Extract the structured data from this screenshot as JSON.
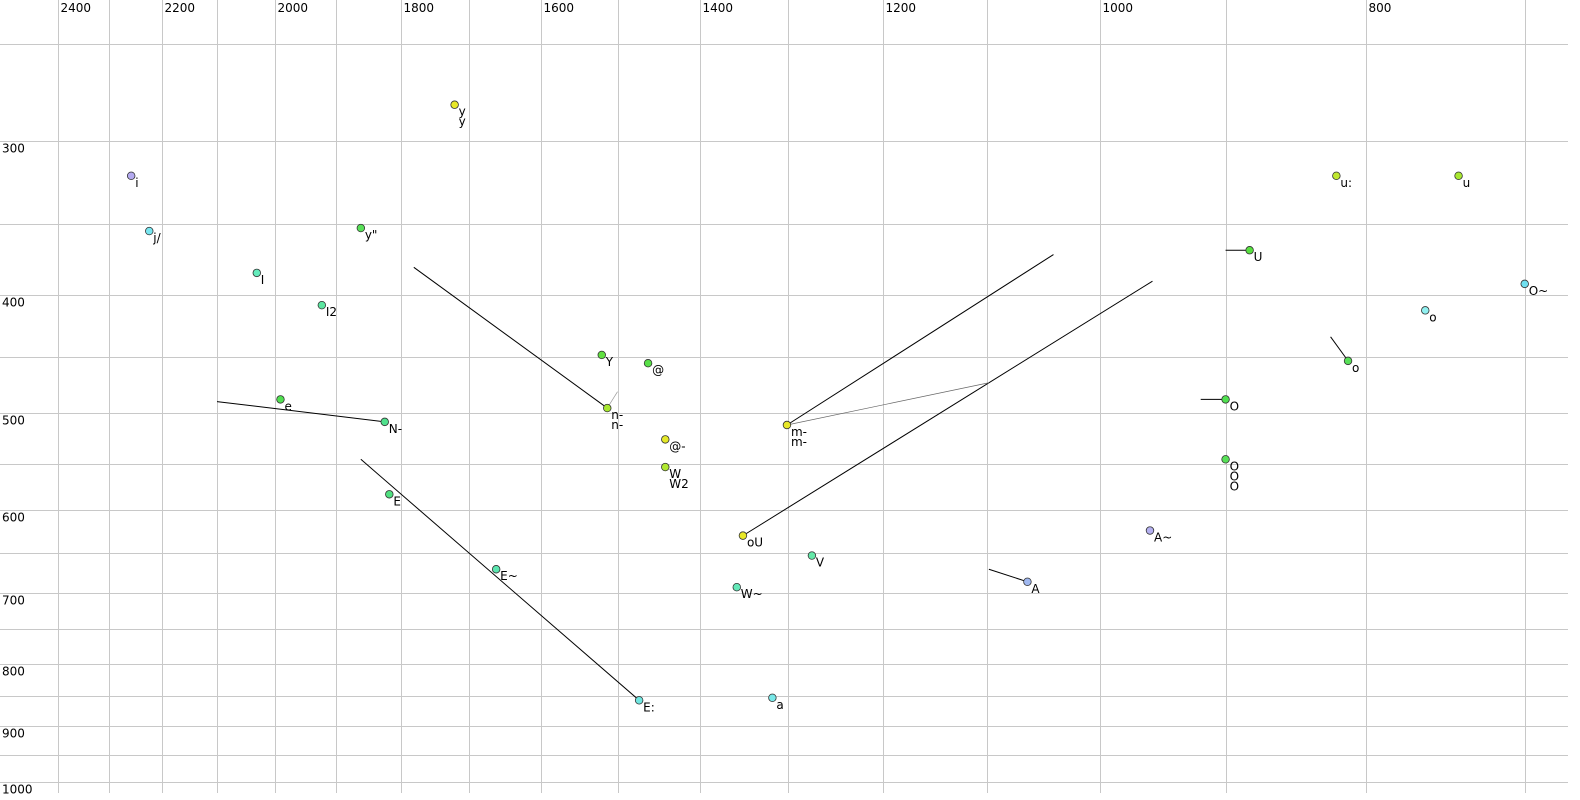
{
  "chart_data": {
    "type": "scatter",
    "xscale": "log",
    "yscale": "log",
    "xlim": [
      2520,
      675
    ],
    "ylim": [
      230,
      1020
    ],
    "xticks": [
      2400,
      2200,
      2000,
      1800,
      1600,
      1400,
      1200,
      1000,
      800
    ],
    "xminor": [
      2300,
      2100,
      1900,
      1700,
      1500,
      1300,
      1100,
      900,
      700
    ],
    "yticks": [
      300,
      400,
      500,
      600,
      700,
      800,
      900,
      1000
    ],
    "yminor": [
      250,
      350,
      450,
      550,
      650,
      750,
      850,
      950
    ],
    "grid": true,
    "points": [
      {
        "x": 2257,
        "y": 320,
        "color": "#b4aaf0",
        "labels": [
          {
            "text": "i",
            "color": "#000"
          }
        ]
      },
      {
        "x": 2223,
        "y": 355,
        "color": "#78e6f0",
        "labels": [
          {
            "text": "j/",
            "color": "#000"
          }
        ]
      },
      {
        "x": 2031,
        "y": 384,
        "color": "#64ecbc",
        "labels": [
          {
            "text": "I",
            "color": "#000"
          }
        ]
      },
      {
        "x": 1923,
        "y": 408,
        "color": "#5ce6a0",
        "labels": [
          {
            "text": "I2",
            "color": "#000"
          }
        ]
      },
      {
        "x": 1861,
        "y": 353,
        "color": "#58e058",
        "labels": [
          {
            "text": "y\"",
            "color": "#000"
          }
        ]
      },
      {
        "x": 1720,
        "y": 280,
        "color": "#e8e828",
        "labels": [
          {
            "text": "y",
            "color": "#999"
          },
          {
            "text": "y",
            "color": "#000"
          }
        ]
      },
      {
        "x": 1991,
        "y": 487,
        "color": "#50e050",
        "labels": [
          {
            "text": "e",
            "color": "#000"
          }
        ]
      },
      {
        "x": 1824,
        "y": 508,
        "color": "#50e08c",
        "labels": [
          {
            "text": "N-",
            "color": "#000"
          }
        ]
      },
      {
        "x": 1817,
        "y": 582,
        "color": "#50e080",
        "labels": [
          {
            "text": "E",
            "color": "#000"
          }
        ]
      },
      {
        "x": 1661,
        "y": 670,
        "color": "#5ce6b0",
        "labels": [
          {
            "text": "E~",
            "color": "#000"
          }
        ]
      },
      {
        "x": 1473,
        "y": 857,
        "color": "#70e6e0",
        "labels": [
          {
            "text": "E:",
            "color": "#000"
          }
        ]
      },
      {
        "x": 1520,
        "y": 448,
        "color": "#60e040",
        "labels": [
          {
            "text": "Y",
            "color": "#000"
          }
        ]
      },
      {
        "x": 1462,
        "y": 455,
        "color": "#58e048",
        "labels": [
          {
            "text": "@",
            "color": "#000"
          }
        ]
      },
      {
        "x": 1513,
        "y": 495,
        "color": "#a8e830",
        "labels": [
          {
            "text": "n-",
            "color": "#999"
          },
          {
            "text": "n-",
            "color": "#000"
          }
        ]
      },
      {
        "x": 1441,
        "y": 525,
        "color": "#e4e828",
        "labels": [
          {
            "text": "@-",
            "color": "#000"
          }
        ]
      },
      {
        "x": 1441,
        "y": 553,
        "color": "#b0e830",
        "labels": [
          {
            "text": "W",
            "color": "#000"
          },
          {
            "text": "W2",
            "color": "#000"
          }
        ]
      },
      {
        "x": 1350,
        "y": 629,
        "color": "#e8e828",
        "labels": [
          {
            "text": "oU",
            "color": "#000"
          }
        ]
      },
      {
        "x": 1301,
        "y": 511,
        "color": "#e8e828",
        "labels": [
          {
            "text": "m-",
            "color": "#999"
          },
          {
            "text": "m-",
            "color": "#000"
          }
        ]
      },
      {
        "x": 1274,
        "y": 653,
        "color": "#64e8a8",
        "labels": [
          {
            "text": "V",
            "color": "#000"
          }
        ]
      },
      {
        "x": 1357,
        "y": 693,
        "color": "#64e8b8",
        "labels": [
          {
            "text": "W~",
            "color": "#000"
          }
        ]
      },
      {
        "x": 1317,
        "y": 853,
        "color": "#78e8e8",
        "labels": [
          {
            "text": "a",
            "color": "#000"
          }
        ]
      },
      {
        "x": 1063,
        "y": 686,
        "color": "#a0b8f0",
        "labels": [
          {
            "text": "A",
            "color": "#000"
          }
        ]
      },
      {
        "x": 959,
        "y": 623,
        "color": "#b4b0f0",
        "labels": [
          {
            "text": "A~",
            "color": "#000"
          }
        ]
      },
      {
        "x": 882,
        "y": 368,
        "color": "#58e040",
        "labels": [
          {
            "text": "U",
            "color": "#000"
          }
        ]
      },
      {
        "x": 900,
        "y": 487,
        "color": "#50e050",
        "labels": [
          {
            "text": "O",
            "color": "#000"
          }
        ]
      },
      {
        "x": 900,
        "y": 545,
        "color": "#58e058",
        "labels": [
          {
            "text": "O",
            "color": "#999"
          },
          {
            "text": "O",
            "color": "#999"
          },
          {
            "text": "O",
            "color": "#999"
          }
        ]
      },
      {
        "x": 820,
        "y": 320,
        "color": "#c0e830",
        "labels": [
          {
            "text": "u:",
            "color": "#000"
          }
        ]
      },
      {
        "x": 740,
        "y": 320,
        "color": "#a8e830",
        "labels": [
          {
            "text": "u",
            "color": "#000"
          }
        ]
      },
      {
        "x": 812,
        "y": 453,
        "color": "#58e058",
        "labels": [
          {
            "text": "o",
            "color": "#000"
          }
        ]
      },
      {
        "x": 700,
        "y": 392,
        "color": "#70e0f0",
        "labels": [
          {
            "text": "O~",
            "color": "#000"
          }
        ]
      },
      {
        "x": 761,
        "y": 412,
        "color": "#90f0f0",
        "labels": [
          {
            "text": "o",
            "color": "#999"
          }
        ]
      }
    ],
    "lines": [
      {
        "x1": 1780,
        "y1": 380,
        "x2": 1513,
        "y2": 495,
        "color": "#000"
      },
      {
        "x1": 1861,
        "y1": 545,
        "x2": 1473,
        "y2": 857,
        "color": "#000"
      },
      {
        "x1": 1301,
        "y1": 511,
        "x2": 1040,
        "y2": 371,
        "color": "#000"
      },
      {
        "x1": 1350,
        "y1": 629,
        "x2": 957,
        "y2": 390,
        "color": "#000"
      },
      {
        "x1": 1301,
        "y1": 511,
        "x2": 1098,
        "y2": 472,
        "color": "#666"
      },
      {
        "x1": 1098,
        "y1": 670,
        "x2": 1063,
        "y2": 686,
        "color": "#000"
      },
      {
        "x1": 900,
        "y1": 368,
        "x2": 882,
        "y2": 368,
        "color": "#000"
      },
      {
        "x1": 919,
        "y1": 487,
        "x2": 900,
        "y2": 487,
        "color": "#000"
      },
      {
        "x1": 824,
        "y1": 433,
        "x2": 812,
        "y2": 453,
        "color": "#000"
      },
      {
        "x1": 2100,
        "y1": 489,
        "x2": 1824,
        "y2": 508,
        "color": "#000"
      },
      {
        "x1": 1513,
        "y1": 495,
        "x2": 1500,
        "y2": 480,
        "color": "#999"
      }
    ]
  }
}
